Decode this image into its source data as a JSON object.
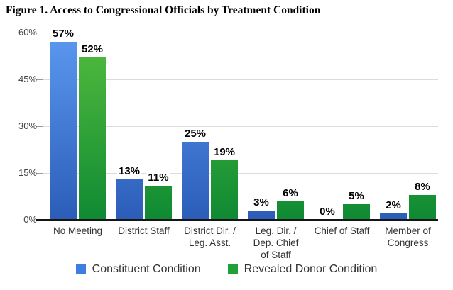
{
  "chart_data": {
    "type": "bar",
    "title": "Figure 1. Access to Congressional Officials by Treatment Condition",
    "categories": [
      "No Meeting",
      "District Staff",
      "District Dir. / Leg. Asst.",
      "Leg. Dir. / Dep. Chief of Staff",
      "Chief of Staff",
      "Member of Congress"
    ],
    "category_display_lines": [
      [
        "No Meeting"
      ],
      [
        "District Staff"
      ],
      [
        "District Dir. /",
        "Leg. Asst."
      ],
      [
        "Leg. Dir. /",
        "Dep. Chief",
        "of Staff"
      ],
      [
        "Chief of Staff"
      ],
      [
        "Member of",
        "Congress"
      ]
    ],
    "series": [
      {
        "name": "Constituent Condition",
        "values": [
          57,
          13,
          25,
          3,
          0,
          2
        ],
        "data_labels": [
          "57%",
          "13%",
          "25%",
          "3%",
          "0%",
          "2%"
        ],
        "color_top": "#5C99F0",
        "color_bottom": "#2B5DB8",
        "legend_color": "#3F7EE0"
      },
      {
        "name": "Revealed Donor Condition",
        "values": [
          52,
          11,
          19,
          6,
          5,
          8
        ],
        "data_labels": [
          "52%",
          "11%",
          "19%",
          "6%",
          "5%",
          "8%"
        ],
        "color_top": "#55BD3E",
        "color_bottom": "#0F8A33",
        "legend_color": "#22A038"
      }
    ],
    "xlabel": "",
    "ylabel": "",
    "y_axis": {
      "max": 60,
      "ticks": [
        0,
        15,
        30,
        45,
        60
      ],
      "tick_labels": [
        "0%",
        "15%",
        "30%",
        "45%",
        "60%"
      ]
    },
    "grid": true,
    "legend_position": "bottom"
  }
}
